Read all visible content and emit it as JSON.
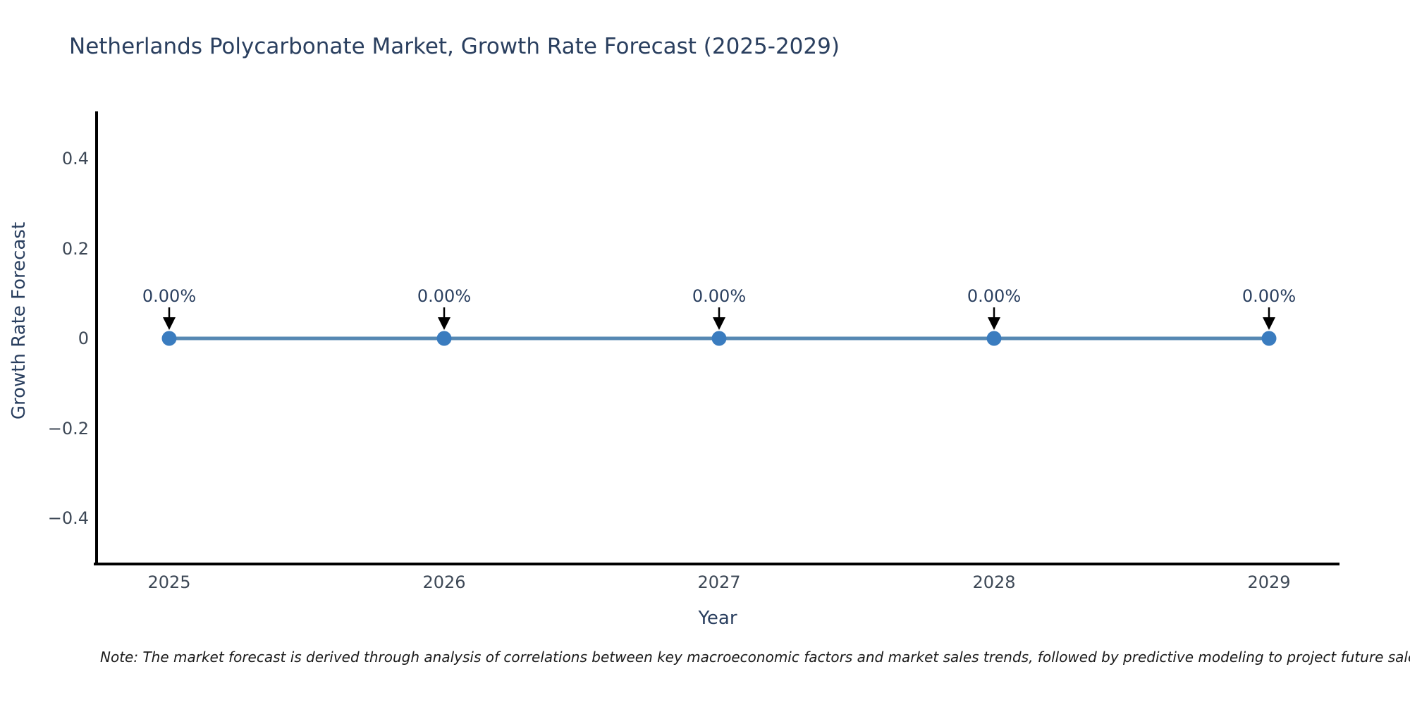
{
  "chart_data": {
    "type": "line",
    "title": "Netherlands Polycarbonate Market, Growth Rate Forecast (2025-2029)",
    "xlabel": "Year",
    "ylabel": "Growth Rate Forecast",
    "x": [
      2025,
      2026,
      2027,
      2028,
      2029
    ],
    "y": [
      0,
      0,
      0,
      0,
      0
    ],
    "point_labels": [
      "0.00%",
      "0.00%",
      "0.00%",
      "0.00%",
      "0.00%"
    ],
    "xtick_labels": [
      "2025",
      "2026",
      "2027",
      "2028",
      "2029"
    ],
    "yticks": [
      0.4,
      0.2,
      0,
      -0.2,
      -0.4
    ],
    "ytick_labels": [
      "0.4",
      "0.2",
      "0",
      "−0.2",
      "−0.4"
    ],
    "ylim": [
      -0.5,
      0.5
    ],
    "grid": false,
    "legend": "none",
    "colors": {
      "line": "#5688b3",
      "marker": "#3a7cbf",
      "axis": "#000000",
      "arrow": "#000000",
      "title_text": "#2a3f5f",
      "tick_text": "#3d4856"
    }
  },
  "note": {
    "text": "Note: The market forecast is derived through analysis of correlations between key macroeconomic factors and market sales trends, followed by predictive modeling to project future sales."
  }
}
